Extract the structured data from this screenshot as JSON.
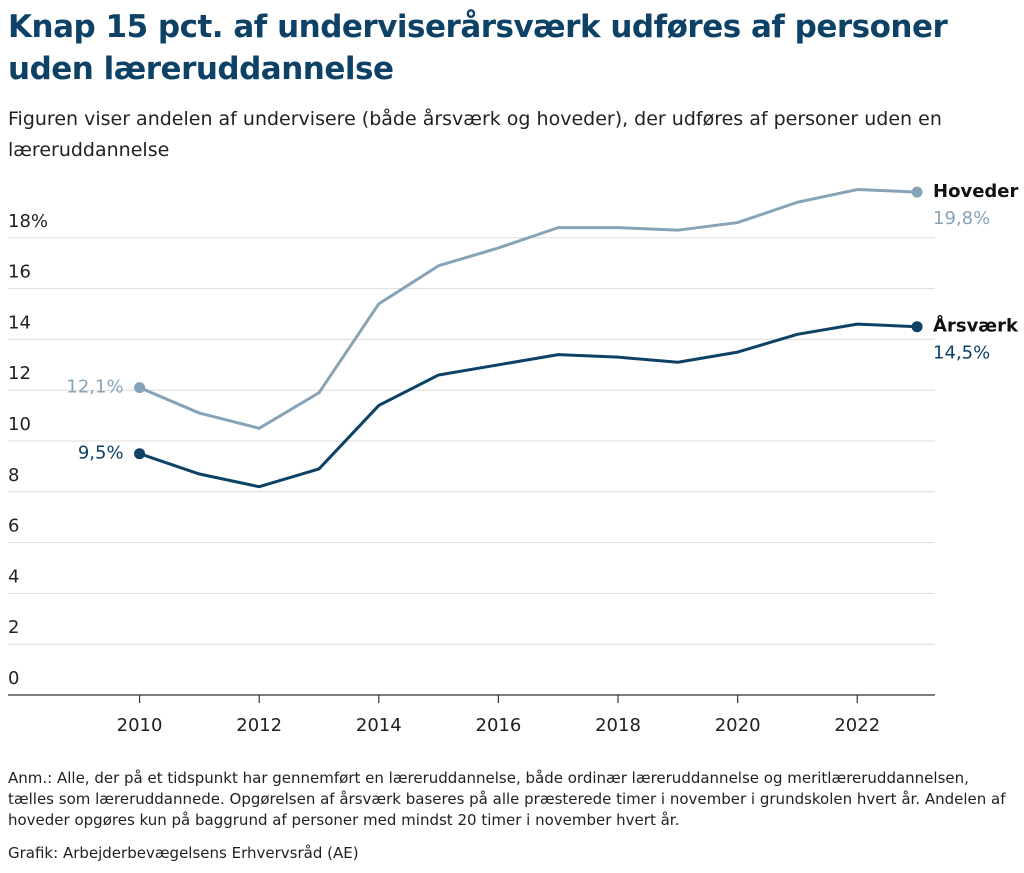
{
  "chart_data": {
    "type": "line",
    "title": "Knap 15 pct. af underviserårsværk udføres af personer uden læreruddannelse",
    "subtitle": "Figuren viser andelen af undervisere (både årsværk og hoveder), der udføres af personer uden en læreruddannelse",
    "note": "Anm.: Alle, der på et tidspunkt har gennemført en læreruddannelse, både ordinær læreruddannelse og meritlæreruddannelsen, tælles som læreruddannede. Opgørelsen af årsværk baseres på alle præsterede timer i november i grundskolen hvert år. Andelen af hoveder opgøres kun på baggrund af personer med mindst 20 timer i november hvert år.",
    "source": "Grafik: Arbejderbevægelsens Erhvervsråd (AE)",
    "x": [
      2010,
      2011,
      2012,
      2013,
      2014,
      2015,
      2016,
      2017,
      2018,
      2019,
      2020,
      2021,
      2022,
      2023
    ],
    "series": [
      {
        "name": "Hoveder",
        "color": "#86a3b8",
        "values": [
          12.1,
          11.1,
          10.5,
          11.9,
          15.4,
          16.9,
          17.6,
          18.4,
          18.4,
          18.3,
          18.6,
          19.4,
          19.9,
          19.8
        ],
        "value_labels": [
          "12,1%",
          null,
          null,
          null,
          null,
          null,
          null,
          null,
          null,
          null,
          null,
          null,
          null,
          "19,8%"
        ]
      },
      {
        "name": "Årsværk",
        "color": "#0d4166",
        "values": [
          9.5,
          8.7,
          8.2,
          8.9,
          11.4,
          12.6,
          13.0,
          13.4,
          13.3,
          13.1,
          13.5,
          14.2,
          14.6,
          14.5
        ],
        "value_labels": [
          "9,5%",
          null,
          null,
          null,
          null,
          null,
          null,
          null,
          null,
          null,
          null,
          null,
          null,
          "14,5%"
        ]
      }
    ],
    "xlim": [
      2007.8,
      2023.3
    ],
    "xticks": [
      2010,
      2012,
      2014,
      2016,
      2018,
      2020,
      2022
    ],
    "ylim": [
      0,
      20
    ],
    "yticks": [
      0,
      2,
      4,
      6,
      8,
      10,
      12,
      14,
      16,
      {
        "value": 18,
        "label": "18%"
      }
    ],
    "grid": true
  }
}
